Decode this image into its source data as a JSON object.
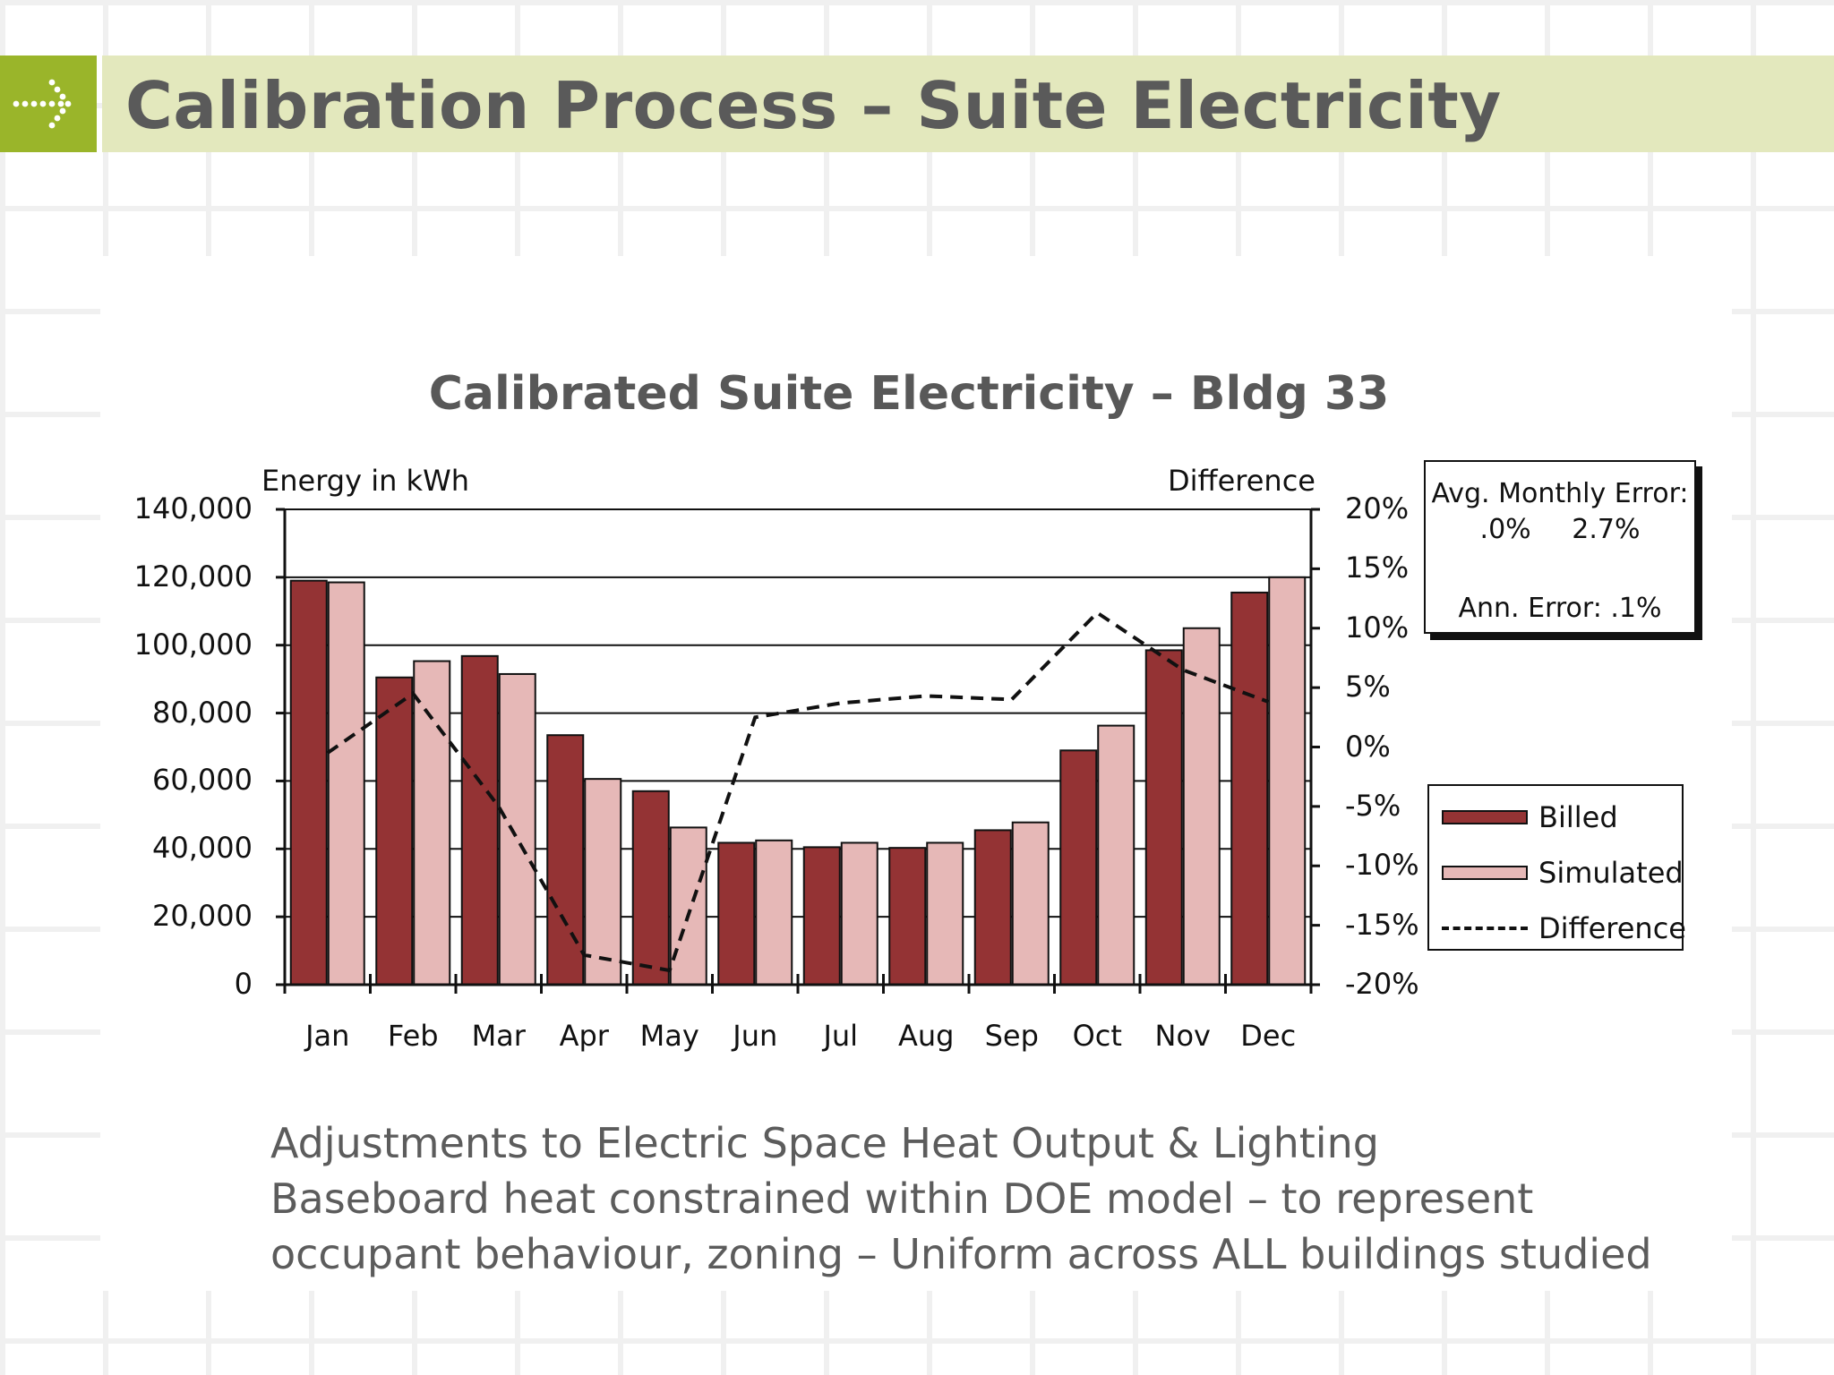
{
  "slide": {
    "title": "Calibration Process – Suite Electricity",
    "body_lines": [
      "Adjustments to Electric Space Heat Output & Lighting",
      "Baseboard heat constrained within DOE model – to represent",
      "occupant behaviour, zoning – Uniform across ALL buildings studied"
    ]
  },
  "colors": {
    "header_band": "#e3e8bd",
    "header_accent": "#9ab52a",
    "billed": "#943334",
    "simulated": "#e6b8b7"
  },
  "icons": {
    "header": "dotted-arrow-icon"
  },
  "chart_data": {
    "type": "bar",
    "title": "Calibrated Suite Electricity – Bldg 33",
    "ylabel": "Energy in kWh",
    "y2label": "Difference",
    "categories": [
      "Jan",
      "Feb",
      "Mar",
      "Apr",
      "May",
      "Jun",
      "Jul",
      "Aug",
      "Sep",
      "Oct",
      "Nov",
      "Dec"
    ],
    "ylim": [
      0,
      140000
    ],
    "yticks": [
      0,
      20000,
      40000,
      60000,
      80000,
      100000,
      120000,
      140000
    ],
    "ytick_labels": [
      "0",
      "20,000",
      "40,000",
      "60,000",
      "80,000",
      "100,000",
      "120,000",
      "140,000"
    ],
    "y2lim": [
      -20,
      20
    ],
    "y2ticks": [
      -20,
      -15,
      -10,
      -5,
      0,
      5,
      10,
      15,
      20
    ],
    "y2tick_labels": [
      "-20%",
      "-15%",
      "-10%",
      "-5%",
      "0%",
      "5%",
      "10%",
      "15%",
      "20%"
    ],
    "grid": true,
    "legend_position": "right",
    "series": [
      {
        "name": "Billed",
        "type": "bar",
        "axis": "left",
        "values": [
          119000,
          90500,
          96800,
          73500,
          57000,
          41800,
          40500,
          40300,
          45500,
          69000,
          98500,
          115500
        ]
      },
      {
        "name": "Simulated",
        "type": "bar",
        "axis": "left",
        "values": [
          118500,
          95300,
          91500,
          60600,
          46300,
          42500,
          41800,
          41800,
          47800,
          76300,
          105000,
          120000
        ]
      },
      {
        "name": "Difference",
        "type": "line",
        "style": "dashed",
        "axis": "right",
        "values": [
          -0.5,
          4.5,
          -5.0,
          -17.5,
          -18.8,
          2.5,
          3.7,
          4.3,
          4.0,
          11.3,
          6.5,
          3.8
        ]
      }
    ],
    "annotations": {
      "avg_label": "Avg. Monthly Error:",
      "avg_values": [
        ".0%",
        "2.7%"
      ],
      "annual": "Ann. Error: .1%"
    }
  }
}
